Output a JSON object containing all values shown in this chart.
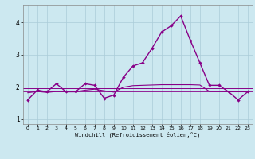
{
  "xlabel": "Windchill (Refroidissement éolien,°C)",
  "x": [
    0,
    1,
    2,
    3,
    4,
    5,
    6,
    7,
    8,
    9,
    10,
    11,
    12,
    13,
    14,
    15,
    16,
    17,
    18,
    19,
    20,
    21,
    22,
    23
  ],
  "main_line": [
    1.6,
    1.9,
    1.85,
    2.1,
    1.85,
    1.85,
    2.1,
    2.05,
    1.65,
    1.75,
    2.3,
    2.65,
    2.75,
    3.2,
    3.7,
    3.9,
    4.2,
    3.45,
    2.75,
    2.05,
    2.05,
    1.85,
    1.6,
    1.85
  ],
  "smooth_line": [
    1.82,
    1.86,
    1.83,
    1.86,
    1.85,
    1.85,
    1.9,
    1.93,
    1.88,
    1.84,
    1.99,
    2.04,
    2.05,
    2.06,
    2.07,
    2.07,
    2.07,
    2.07,
    2.06,
    1.86,
    1.86,
    1.85,
    1.85,
    1.85
  ],
  "flat_y": 1.85,
  "mean_y": 1.95,
  "line_color": "#880088",
  "bg_color": "#cce8f0",
  "grid_color": "#aaccd8",
  "ylim": [
    0.85,
    4.55
  ],
  "yticks": [
    1,
    2,
    3,
    4
  ],
  "xlim": [
    -0.5,
    23.5
  ],
  "xticks": [
    0,
    1,
    2,
    3,
    4,
    5,
    6,
    7,
    8,
    9,
    10,
    11,
    12,
    13,
    14,
    15,
    16,
    17,
    18,
    19,
    20,
    21,
    22,
    23
  ]
}
